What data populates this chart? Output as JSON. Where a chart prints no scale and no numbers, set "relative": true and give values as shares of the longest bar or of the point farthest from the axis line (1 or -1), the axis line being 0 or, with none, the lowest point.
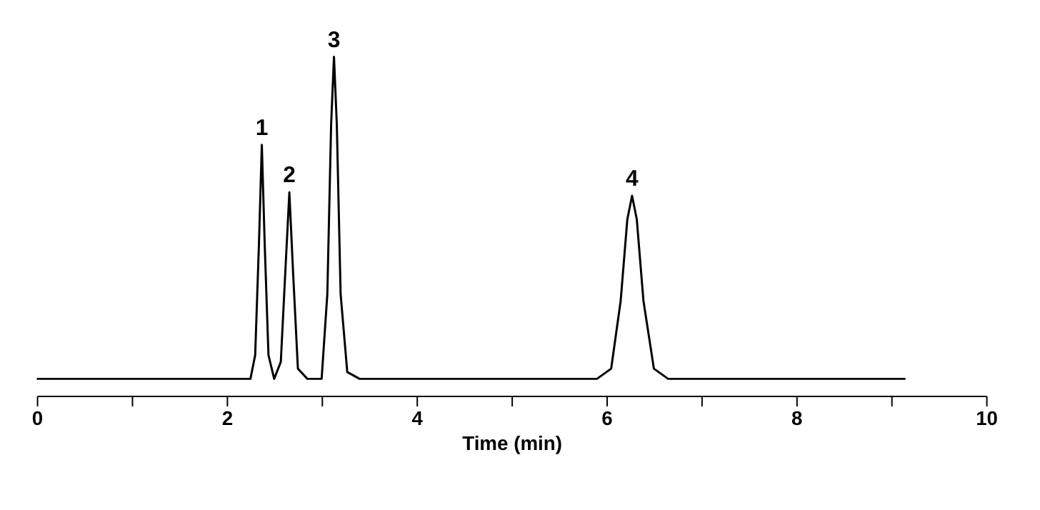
{
  "chart_data": {
    "type": "line",
    "relative": true,
    "xlabel": "Time (min)",
    "xlim": [
      0,
      10
    ],
    "xticks": [
      0,
      {
        "value": 1,
        "label": null
      },
      2,
      {
        "value": 3,
        "label": null
      },
      4,
      {
        "value": 5,
        "label": null
      },
      6,
      {
        "value": 7,
        "label": null
      },
      8,
      {
        "value": 9,
        "label": null
      },
      10
    ],
    "grid": false,
    "marker": "none",
    "line_style": "solid",
    "series": [
      {
        "color": "#000000",
        "x": [
          0,
          2.0,
          2.25,
          2.3,
          2.34,
          2.37,
          2.4,
          2.44,
          2.5,
          2.57,
          2.62,
          2.66,
          2.7,
          2.75,
          2.85,
          3.0,
          3.06,
          3.1,
          3.13,
          3.16,
          3.2,
          3.27,
          3.4,
          5.9,
          6.05,
          6.15,
          6.22,
          6.27,
          6.32,
          6.39,
          6.5,
          6.65,
          9.15
        ],
        "values": [
          0.05,
          0.05,
          0.05,
          0.12,
          0.45,
          0.74,
          0.45,
          0.12,
          0.05,
          0.1,
          0.38,
          0.6,
          0.36,
          0.08,
          0.05,
          0.05,
          0.3,
          0.8,
          1.0,
          0.8,
          0.3,
          0.07,
          0.05,
          0.05,
          0.08,
          0.28,
          0.52,
          0.59,
          0.52,
          0.28,
          0.08,
          0.05,
          0.05
        ]
      }
    ],
    "annotations": [
      {
        "text": "1",
        "x": 2.37,
        "y": 0.74
      },
      {
        "text": "2",
        "x": 2.66,
        "y": 0.6
      },
      {
        "text": "3",
        "x": 3.13,
        "y": 1.0
      },
      {
        "text": "4",
        "x": 6.27,
        "y": 0.59
      }
    ]
  }
}
